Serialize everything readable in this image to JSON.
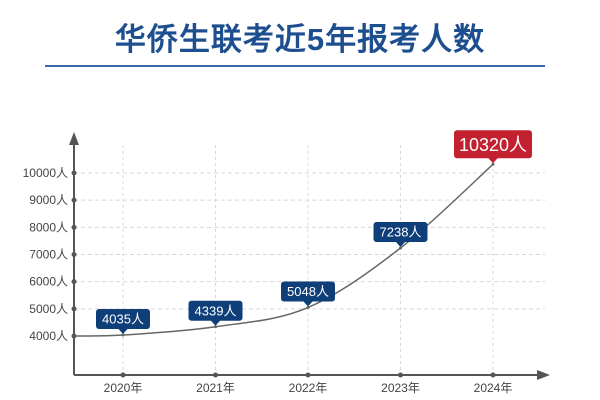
{
  "chart_data": {
    "type": "line",
    "title": "华侨生联考近5年报考人数",
    "categories": [
      "2020年",
      "2021年",
      "2022年",
      "2023年",
      "2024年"
    ],
    "values": [
      4035,
      4339,
      5048,
      7238,
      10320
    ],
    "data_labels": [
      "4035人",
      "4339人",
      "5048人",
      "7238人",
      "10320人"
    ],
    "y_ticks": [
      4000,
      5000,
      6000,
      7000,
      8000,
      9000,
      10000
    ],
    "y_tick_labels": [
      "4000人",
      "5000人",
      "6000人",
      "7000人",
      "8000人",
      "9000人",
      "10000人"
    ],
    "ylim": [
      3000,
      11000
    ],
    "grid": true,
    "highlight_index": 4,
    "colors": {
      "title": "#1d4e8f",
      "label": "#0f3f78",
      "highlight": "#c3212f",
      "axis": "#555555",
      "line": "#666666",
      "grid": "#d8d8d8"
    }
  }
}
